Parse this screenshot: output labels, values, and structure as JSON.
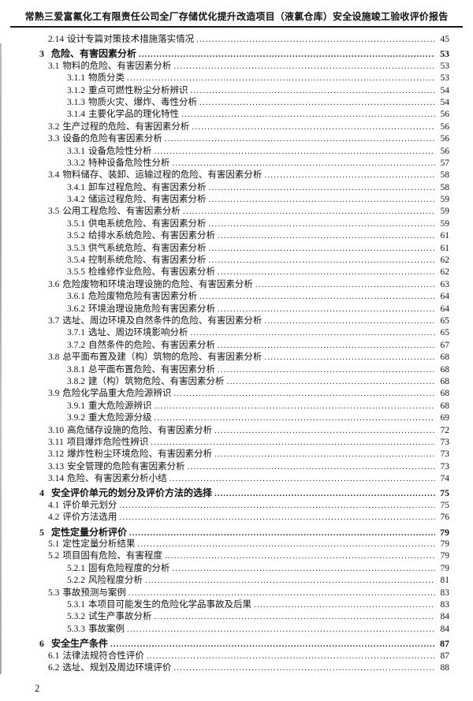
{
  "header": {
    "title": "常熟三爱富氟化工有限责任公司全厂存储优化提升改造项目（液氯仓库）安全设施竣工验收评价报告"
  },
  "footer": {
    "page_number": "2"
  },
  "toc": {
    "entries": [
      {
        "num": "2.14",
        "title": "设计专篇对策技术措施落实情况",
        "page": "45",
        "level": 2
      },
      {
        "num": "3",
        "title": "危险、有害因素分析",
        "page": "53",
        "level": 1
      },
      {
        "num": "3.1",
        "title": "物料的危险、有害因素分析",
        "page": "53",
        "level": 2
      },
      {
        "num": "3.1.1",
        "title": "物质分类",
        "page": "53",
        "level": 3
      },
      {
        "num": "3.1.2",
        "title": "重点可燃性粉尘分析辨识",
        "page": "54",
        "level": 3
      },
      {
        "num": "3.1.3",
        "title": "物质火灾、爆炸、毒性分析",
        "page": "54",
        "level": 3
      },
      {
        "num": "3.1.4",
        "title": "主要化学品的理化特性",
        "page": "56",
        "level": 3
      },
      {
        "num": "3.2",
        "title": "生产过程的危险、有害因素分析",
        "page": "56",
        "level": 2
      },
      {
        "num": "3.3",
        "title": "设备的危险有害因素分析",
        "page": "56",
        "level": 2
      },
      {
        "num": "3.3.1",
        "title": "设备危险性分析",
        "page": "56",
        "level": 3
      },
      {
        "num": "3.3.2",
        "title": "特种设备危险性分析",
        "page": "57",
        "level": 3
      },
      {
        "num": "3.4",
        "title": "物料储存、装卸、运输过程的危险、有害因素分析",
        "page": "58",
        "level": 2
      },
      {
        "num": "3.4.1",
        "title": "卸车过程危险、有害因素分析",
        "page": "58",
        "level": 3
      },
      {
        "num": "3.4.2",
        "title": "储运过程危险、有害因素分析",
        "page": "59",
        "level": 3
      },
      {
        "num": "3.5",
        "title": "公用工程危险、有害因素分析",
        "page": "59",
        "level": 2
      },
      {
        "num": "3.5.1",
        "title": "供电系统危险、有害因素分析",
        "page": "59",
        "level": 3
      },
      {
        "num": "3.5.2",
        "title": "给排水系统危险、有害因素分析",
        "page": "61",
        "level": 3
      },
      {
        "num": "3.5.3",
        "title": "供气系统危险、有害因素分析",
        "page": "61",
        "level": 3
      },
      {
        "num": "3.5.4",
        "title": "控制系统危险、有害因素分析",
        "page": "62",
        "level": 3
      },
      {
        "num": "3.5.5",
        "title": "检维修作业危险、有害因素分析",
        "page": "62",
        "level": 3
      },
      {
        "num": "3.6",
        "title": "危险废物和环境治理设施的危险、有害因素分析",
        "page": "63",
        "level": 2
      },
      {
        "num": "3.6.1",
        "title": "危险废物危险有害因素分析",
        "page": "64",
        "level": 3
      },
      {
        "num": "3.6.2",
        "title": "环境治理设施危险有害因素分析",
        "page": "64",
        "level": 3
      },
      {
        "num": "3.7",
        "title": "选址、周边环境及自然条件的危险、有害因素分析",
        "page": "65",
        "level": 2
      },
      {
        "num": "3.7.1",
        "title": "选址、周边环境影响分析",
        "page": "65",
        "level": 3
      },
      {
        "num": "3.7.2",
        "title": "自然条件的危险、有害因素分析",
        "page": "67",
        "level": 3
      },
      {
        "num": "3.8",
        "title": "总平面布置及建（构）筑物的危险、有害因素分析",
        "page": "68",
        "level": 2
      },
      {
        "num": "3.8.1",
        "title": "总平面布置危险、有害因素分析",
        "page": "68",
        "level": 3
      },
      {
        "num": "3.8.2",
        "title": "建（构）筑物危险、有害因素分析",
        "page": "68",
        "level": 3
      },
      {
        "num": "3.9",
        "title": "危险化学品重大危险源辨识",
        "page": "68",
        "level": 2
      },
      {
        "num": "3.9.1",
        "title": "重大危险源辨识",
        "page": "68",
        "level": 3
      },
      {
        "num": "3.9.2",
        "title": "重大危险源分级",
        "page": "69",
        "level": 3
      },
      {
        "num": "3.10",
        "title": "高危储存设施的危险、有害因素分析",
        "page": "72",
        "level": 2
      },
      {
        "num": "3.11",
        "title": "项目爆炸危险性辨识",
        "page": "73",
        "level": 2
      },
      {
        "num": "3.12",
        "title": "爆炸性粉尘环境危险、有害因素分析",
        "page": "73",
        "level": 2
      },
      {
        "num": "3.13",
        "title": "安全管理的危险有害因素分析",
        "page": "73",
        "level": 2
      },
      {
        "num": "3.14",
        "title": "危险、有害因素分析小结",
        "page": "74",
        "level": 2
      },
      {
        "num": "4",
        "title": "安全评价单元的划分及评价方法的选择",
        "page": "75",
        "level": 1
      },
      {
        "num": "4.1",
        "title": "评价单元划分",
        "page": "75",
        "level": 2
      },
      {
        "num": "4.2",
        "title": "评价方法选用",
        "page": "76",
        "level": 2
      },
      {
        "num": "5",
        "title": "定性定量分析评价",
        "page": "79",
        "level": 1
      },
      {
        "num": "5.1",
        "title": "定性定量分析结果",
        "page": "79",
        "level": 2
      },
      {
        "num": "5.2",
        "title": "项目固有危险、有害程度",
        "page": "79",
        "level": 2
      },
      {
        "num": "5.2.1",
        "title": "固有危险程度的分析",
        "page": "79",
        "level": 3
      },
      {
        "num": "5.2.2",
        "title": "风险程度分析",
        "page": "81",
        "level": 3
      },
      {
        "num": "5.3",
        "title": "事故预测与案例",
        "page": "83",
        "level": 2
      },
      {
        "num": "5.3.1",
        "title": "本项目可能发生的危险化学品事故及后果",
        "page": "83",
        "level": 3
      },
      {
        "num": "5.3.2",
        "title": "试生产事故分析",
        "page": "84",
        "level": 3
      },
      {
        "num": "5.3.3",
        "title": "事故案例",
        "page": "84",
        "level": 3
      },
      {
        "num": "6",
        "title": "安全生产条件",
        "page": "87",
        "level": 1
      },
      {
        "num": "6.1",
        "title": "法律法规符合性评价",
        "page": "87",
        "level": 2
      },
      {
        "num": "6.2",
        "title": "选址、规划及周边环境评价",
        "page": "88",
        "level": 2
      }
    ]
  }
}
